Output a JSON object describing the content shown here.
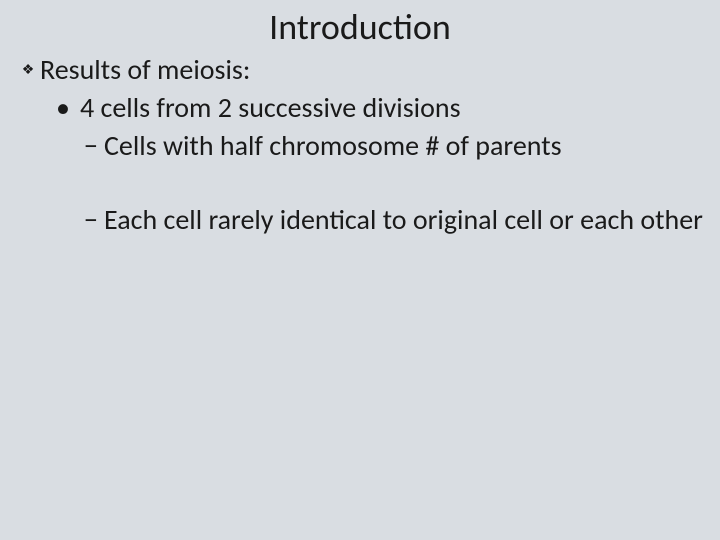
{
  "background_color": "#d9dde2",
  "text_color": "#1a1a1a",
  "title": {
    "text": "Introduction",
    "fontsize": 36,
    "fontweight": 400
  },
  "body_fontsize": 28,
  "body_lineheight": 36,
  "bullets": {
    "lvl1_glyph": "❖",
    "lvl2_glyph": "•",
    "lvl3_glyph": "−"
  },
  "outline": {
    "item1": {
      "text": "Results of meiosis:",
      "sub1": {
        "text": "4 cells from 2 successive divisions",
        "sub1": {
          "text": "Cells with half chromosome # of parents"
        },
        "sub2": {
          "text": "Each cell rarely identical to original cell or each other"
        }
      }
    }
  }
}
